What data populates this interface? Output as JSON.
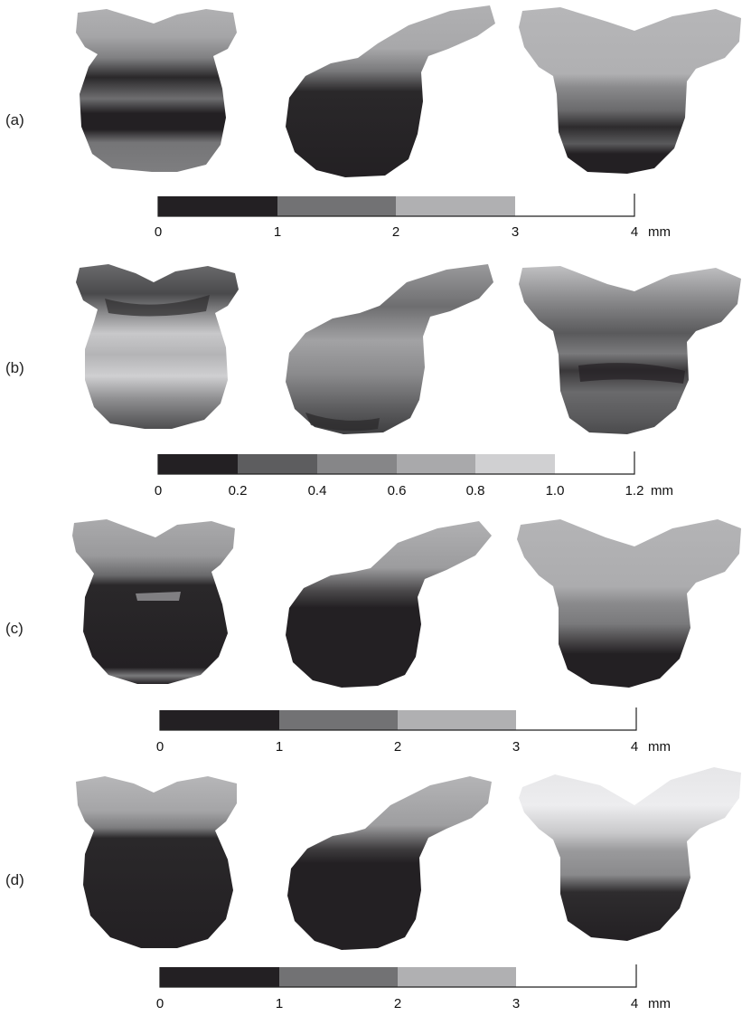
{
  "figure": {
    "rows": [
      {
        "label": "(a)",
        "views": [
          "front-view",
          "side-view",
          "back-view"
        ],
        "colorbar": {
          "ticks": [
            "0",
            "1",
            "2",
            "3",
            "4"
          ],
          "unit": "mm",
          "bins": [
            {
              "from": 0,
              "to": 1,
              "color": "#232023"
            },
            {
              "from": 1,
              "to": 2,
              "color": "#727274"
            },
            {
              "from": 2,
              "to": 3,
              "color": "#b0b0b2"
            },
            {
              "from": 3,
              "to": 4,
              "color": "#ffffff"
            }
          ]
        }
      },
      {
        "label": "(b)",
        "views": [
          "front-view",
          "side-view",
          "back-view"
        ],
        "colorbar": {
          "ticks": [
            "0",
            "0.2",
            "0.4",
            "0.6",
            "0.8",
            "1.0",
            "1.2"
          ],
          "unit": "mm",
          "bins": [
            {
              "from": 0,
              "to": 0.2,
              "color": "#232023"
            },
            {
              "from": 0.2,
              "to": 0.4,
              "color": "#5d5d5f"
            },
            {
              "from": 0.4,
              "to": 0.6,
              "color": "#868688"
            },
            {
              "from": 0.6,
              "to": 0.8,
              "color": "#a9a9ab"
            },
            {
              "from": 0.8,
              "to": 1.0,
              "color": "#d0d0d2"
            },
            {
              "from": 1.0,
              "to": 1.2,
              "color": "#ffffff"
            }
          ]
        }
      },
      {
        "label": "(c)",
        "views": [
          "front-view",
          "side-view",
          "back-view"
        ],
        "colorbar": {
          "ticks": [
            "0",
            "1",
            "2",
            "3",
            "4"
          ],
          "unit": "mm",
          "bins": [
            {
              "from": 0,
              "to": 1,
              "color": "#232023"
            },
            {
              "from": 1,
              "to": 2,
              "color": "#727274"
            },
            {
              "from": 2,
              "to": 3,
              "color": "#b0b0b2"
            },
            {
              "from": 3,
              "to": 4,
              "color": "#ffffff"
            }
          ]
        }
      },
      {
        "label": "(d)",
        "views": [
          "front-view",
          "side-view",
          "back-view"
        ],
        "colorbar": {
          "ticks": [
            "0",
            "1",
            "2",
            "3",
            "4"
          ],
          "unit": "mm",
          "bins": [
            {
              "from": 0,
              "to": 1,
              "color": "#232023"
            },
            {
              "from": 1,
              "to": 2,
              "color": "#727274"
            },
            {
              "from": 2,
              "to": 3,
              "color": "#b0b0b2"
            },
            {
              "from": 3,
              "to": 4,
              "color": "#ffffff"
            }
          ]
        }
      }
    ]
  }
}
